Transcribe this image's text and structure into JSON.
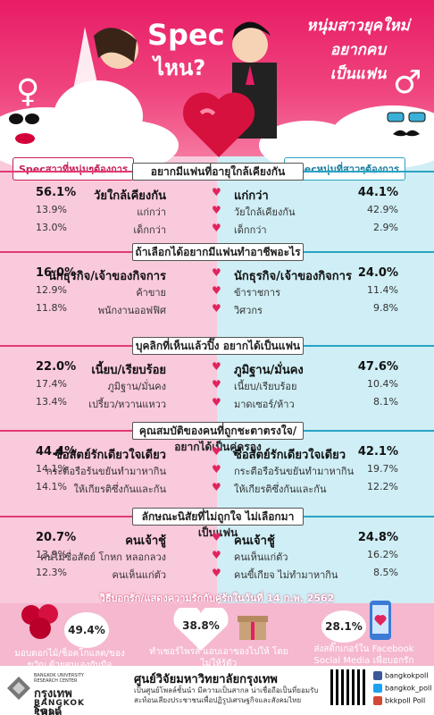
{
  "hero": {
    "title_main": "Spec",
    "title_sub": "ไหน?",
    "title_right": [
      "หนุ่มสาวยุคใหม่",
      "อยากคบ",
      "เป็นแฟน"
    ],
    "female_symbol": "♀",
    "male_symbol": "♂"
  },
  "tags": {
    "left": "Specสาวที่หนุ่มๆต้องการ",
    "right": "Specหนุ่มที่สาวๆต้องการ"
  },
  "sections": [
    {
      "title": "อยากมีแฟนที่อายุใกล้เคียงกัน",
      "rows": [
        {
          "lp": "56.1%",
          "ll": "วัยใกล้เคียงกัน",
          "rl": "แก่กว่า",
          "rp": "44.1%",
          "main": true
        },
        {
          "lp": "13.9%",
          "ll": "แก่กว่า",
          "rl": "วัยใกล้เคียงกัน",
          "rp": "42.9%",
          "main": false
        },
        {
          "lp": "13.0%",
          "ll": "เด็กกว่า",
          "rl": "เด็กกว่า",
          "rp": "2.9%",
          "main": false
        }
      ]
    },
    {
      "title": "ถ้าเลือกได้อยากมีแฟนทำอาชีพอะไร",
      "rows": [
        {
          "lp": "16.0%",
          "ll": "นักธุรกิจ/เจ้าของกิจการ",
          "rl": "นักธุรกิจ/เจ้าของกิจการ",
          "rp": "24.0%",
          "main": true
        },
        {
          "lp": "12.9%",
          "ll": "ค้าขาย",
          "rl": "ข้าราชการ",
          "rp": "11.4%",
          "main": false
        },
        {
          "lp": "11.8%",
          "ll": "พนักงานออฟฟิศ",
          "rl": "วิศวกร",
          "rp": "9.8%",
          "main": false
        }
      ]
    },
    {
      "title": "บุคลิกที่เห็นแล้วปิ๊ง อยากได้เป็นแฟน",
      "rows": [
        {
          "lp": "22.0%",
          "ll": "เนี้ยบ/เรียบร้อย",
          "rl": "ภูมิฐาน/มั่นคง",
          "rp": "47.6%",
          "main": true
        },
        {
          "lp": "17.4%",
          "ll": "ภูมิฐาน/มั่นคง",
          "rl": "เนี้ยบ/เรียบร้อย",
          "rp": "10.4%",
          "main": false
        },
        {
          "lp": "13.4%",
          "ll": "เปรี้ยว/หวานแหวว",
          "rl": "มาดเซอร์/ห้าว",
          "rp": "8.1%",
          "main": false
        }
      ]
    },
    {
      "title": "คุณสมบัติของคนที่ถูกชะตาตรงใจ/อยากได้เป็นคู่ครอง",
      "rows": [
        {
          "lp": "44.4%",
          "ll": "ซื่อสัตย์รักเดียวใจเดียว",
          "rl": "ซื่อสัตย์รักเดียวใจเดียว",
          "rp": "42.1%",
          "main": true
        },
        {
          "lp": "14.1%",
          "ll": "กระตือรือร้นขยันทำมาหากิน",
          "rl": "กระตือรือร้นขยันทำมาหากิน",
          "rp": "19.7%",
          "main": false
        },
        {
          "lp": "14.1%",
          "ll": "ให้เกียรติซึ่งกันและกัน",
          "rl": "ให้เกียรติซึ่งกันและกัน",
          "rp": "12.2%",
          "main": false
        }
      ]
    },
    {
      "title": "ลักษณะนิสัยที่ไม่ถูกใจ ไม่เลือกมาเป็นแฟน",
      "rows": [
        {
          "lp": "20.7%",
          "ll": "คนเจ้าชู้",
          "rl": "คนเจ้าชู้",
          "rp": "24.8%",
          "main": true
        },
        {
          "lp": "13.9%",
          "ll": "คนไม่ซื่อสัตย์ โกหก หลอกลวง",
          "rl": "คนเห็นแก่ตัว",
          "rp": "16.2%",
          "main": false
        },
        {
          "lp": "12.3%",
          "ll": "คนเห็นแก่ตัว",
          "rl": "คนขี้เกียจ ไม่ทำมาหากิน",
          "rp": "8.5%",
          "main": false
        }
      ]
    }
  ],
  "valentine_heading": "วิธีบอกรัก/แสดงความรักกับคู่รักในวันที่ 14 ก.พ. 2562",
  "bottom_items": [
    {
      "pct": "49.4%",
      "label": "มอบดอกไม้/ช็อคโกแลต/ของขวัญ ด้วยตนเองกับมือ"
    },
    {
      "pct": "38.8%",
      "label": "ทำเซอร์ไพรส์ แอบเอาของไปให้ โดยไม่ให้รู้ตัว"
    },
    {
      "pct": "28.1%",
      "label": "ส่งสติ๊กเกอร์ใน Facebook Social Media เพื่อบอกรัก"
    }
  ],
  "footer": {
    "org_name": "ศูนย์วิจัยมหาวิทยาลัยกรุงเทพ",
    "org_desc": "เป็นศูนย์โพลล์ชั้นนำ มีความเป็นสากล น่าเชื่อถือเป็นที่ยอมรับ สะท้อนเสียงประชาชนเพื่อปฏิรูปเศรษฐกิจและสังคมไทย",
    "logo_th": "กรุงเทพโพลล์",
    "logo_en": "BANGKOK POLL",
    "logo_small": "BANGKOK UNIVERSITY RESEARCH CENTER",
    "social": [
      {
        "label": "bangkokpoll",
        "color": "#3b5998"
      },
      {
        "label": "bangkok_poll",
        "color": "#1da1f2"
      },
      {
        "label": "bkkpoll Poll",
        "color": "#d34836"
      }
    ]
  },
  "colors": {
    "pink": "#e81c66",
    "blue": "#2aa3c4",
    "heart": "#e0245e"
  }
}
